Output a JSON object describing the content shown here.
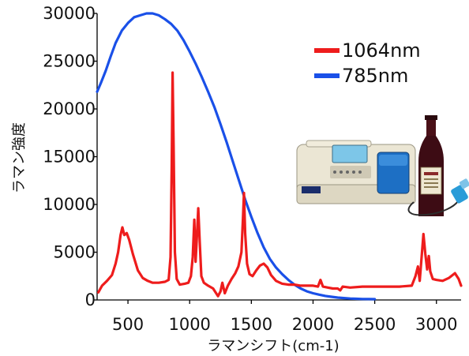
{
  "chart_data": {
    "type": "line",
    "title": "",
    "xlabel": "ラマンシフト(cm-1)",
    "ylabel": "ラマン強度",
    "xlim": [
      250,
      3200
    ],
    "ylim": [
      0,
      30000
    ],
    "x_ticks": [
      500,
      1000,
      1500,
      2000,
      2500,
      3000
    ],
    "y_ticks": [
      0,
      5000,
      10000,
      15000,
      20000,
      25000,
      30000
    ],
    "x_tick_labels": [
      "500",
      "1000",
      "1500",
      "2000",
      "2500",
      "3000"
    ],
    "y_tick_labels": [
      "0",
      "5000",
      "10000",
      "15000",
      "20000",
      "25000",
      "30000"
    ],
    "grid": false,
    "legend_position": "top-right",
    "series": [
      {
        "name": "1064nm",
        "color": "#ee1c1c",
        "points": [
          [
            260,
            800
          ],
          [
            290,
            1500
          ],
          [
            330,
            2000
          ],
          [
            370,
            2600
          ],
          [
            400,
            3800
          ],
          [
            420,
            5000
          ],
          [
            440,
            6800
          ],
          [
            455,
            7600
          ],
          [
            470,
            6800
          ],
          [
            490,
            7000
          ],
          [
            510,
            6300
          ],
          [
            540,
            4800
          ],
          [
            580,
            3100
          ],
          [
            620,
            2300
          ],
          [
            660,
            2000
          ],
          [
            700,
            1800
          ],
          [
            750,
            1800
          ],
          [
            800,
            1900
          ],
          [
            830,
            2100
          ],
          [
            845,
            4500
          ],
          [
            855,
            14000
          ],
          [
            862,
            23800
          ],
          [
            870,
            16000
          ],
          [
            880,
            5000
          ],
          [
            895,
            2200
          ],
          [
            920,
            1600
          ],
          [
            960,
            1700
          ],
          [
            990,
            1800
          ],
          [
            1010,
            2500
          ],
          [
            1025,
            4500
          ],
          [
            1038,
            8400
          ],
          [
            1048,
            4000
          ],
          [
            1058,
            6500
          ],
          [
            1070,
            9600
          ],
          [
            1082,
            6000
          ],
          [
            1095,
            2500
          ],
          [
            1115,
            1800
          ],
          [
            1150,
            1500
          ],
          [
            1190,
            1200
          ],
          [
            1230,
            400
          ],
          [
            1250,
            900
          ],
          [
            1265,
            1800
          ],
          [
            1285,
            700
          ],
          [
            1310,
            1500
          ],
          [
            1340,
            2200
          ],
          [
            1370,
            2800
          ],
          [
            1395,
            3500
          ],
          [
            1420,
            5000
          ],
          [
            1432,
            8500
          ],
          [
            1440,
            11200
          ],
          [
            1450,
            7000
          ],
          [
            1465,
            3800
          ],
          [
            1485,
            2700
          ],
          [
            1510,
            2500
          ],
          [
            1540,
            3100
          ],
          [
            1570,
            3600
          ],
          [
            1600,
            3800
          ],
          [
            1630,
            3400
          ],
          [
            1660,
            2600
          ],
          [
            1700,
            2000
          ],
          [
            1750,
            1700
          ],
          [
            1800,
            1600
          ],
          [
            1850,
            1600
          ],
          [
            1900,
            1500
          ],
          [
            1950,
            1500
          ],
          [
            2000,
            1500
          ],
          [
            2040,
            1400
          ],
          [
            2060,
            2100
          ],
          [
            2080,
            1400
          ],
          [
            2120,
            1300
          ],
          [
            2160,
            1200
          ],
          [
            2200,
            1200
          ],
          [
            2220,
            1000
          ],
          [
            2240,
            1400
          ],
          [
            2300,
            1300
          ],
          [
            2400,
            1400
          ],
          [
            2500,
            1400
          ],
          [
            2600,
            1400
          ],
          [
            2700,
            1400
          ],
          [
            2800,
            1500
          ],
          [
            2830,
            2500
          ],
          [
            2850,
            3500
          ],
          [
            2865,
            2000
          ],
          [
            2880,
            4500
          ],
          [
            2895,
            6900
          ],
          [
            2910,
            4800
          ],
          [
            2925,
            3200
          ],
          [
            2938,
            4600
          ],
          [
            2950,
            3000
          ],
          [
            2970,
            2200
          ],
          [
            3000,
            2100
          ],
          [
            3050,
            2000
          ],
          [
            3100,
            2300
          ],
          [
            3150,
            2800
          ],
          [
            3180,
            2200
          ],
          [
            3200,
            1500
          ]
        ]
      },
      {
        "name": "785nm",
        "color": "#1a50e8",
        "points": [
          [
            250,
            21800
          ],
          [
            280,
            22700
          ],
          [
            320,
            24000
          ],
          [
            360,
            25500
          ],
          [
            400,
            26900
          ],
          [
            450,
            28200
          ],
          [
            500,
            29000
          ],
          [
            550,
            29600
          ],
          [
            600,
            29800
          ],
          [
            650,
            30000
          ],
          [
            700,
            30000
          ],
          [
            750,
            29800
          ],
          [
            800,
            29400
          ],
          [
            850,
            28900
          ],
          [
            900,
            28200
          ],
          [
            950,
            27200
          ],
          [
            1000,
            26000
          ],
          [
            1050,
            24700
          ],
          [
            1100,
            23300
          ],
          [
            1150,
            21800
          ],
          [
            1200,
            20200
          ],
          [
            1250,
            18400
          ],
          [
            1300,
            16500
          ],
          [
            1350,
            14500
          ],
          [
            1400,
            12500
          ],
          [
            1450,
            10500
          ],
          [
            1500,
            8700
          ],
          [
            1550,
            7000
          ],
          [
            1600,
            5500
          ],
          [
            1650,
            4300
          ],
          [
            1700,
            3400
          ],
          [
            1750,
            2700
          ],
          [
            1800,
            2100
          ],
          [
            1850,
            1600
          ],
          [
            1900,
            1200
          ],
          [
            1950,
            900
          ],
          [
            2000,
            700
          ],
          [
            2050,
            550
          ],
          [
            2100,
            420
          ],
          [
            2150,
            330
          ],
          [
            2200,
            250
          ],
          [
            2250,
            200
          ],
          [
            2300,
            150
          ],
          [
            2350,
            120
          ],
          [
            2400,
            100
          ],
          [
            2450,
            90
          ],
          [
            2500,
            80
          ]
        ]
      }
    ],
    "inset_image": "spectrometer-and-wine-bottle"
  }
}
